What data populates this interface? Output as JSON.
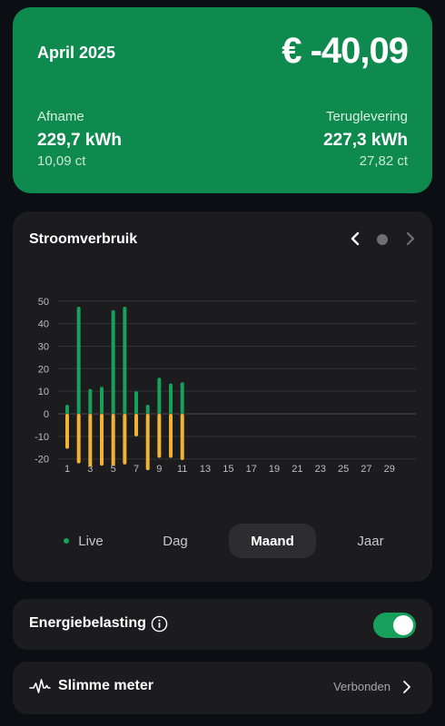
{
  "summary": {
    "month": "April 2025",
    "total": "€ -40,09",
    "afname": {
      "label": "Afname",
      "kwh": "229,7 kWh",
      "price": "10,09 ct"
    },
    "teruglevering": {
      "label": "Teruglevering",
      "kwh": "227,3 kWh",
      "price": "27,82 ct"
    }
  },
  "chart_card": {
    "title": "Stroomverbruik",
    "nav_icons": [
      "chevron-left-icon",
      "page-dot-icon",
      "chevron-right-icon"
    ]
  },
  "tabs": [
    {
      "label": "Live",
      "active": false
    },
    {
      "label": "Dag",
      "active": false
    },
    {
      "label": "Maand",
      "active": true
    },
    {
      "label": "Jaar",
      "active": false
    }
  ],
  "energiebelasting": {
    "label": "Energiebelasting",
    "toggle_on": true
  },
  "slimme_meter": {
    "label": "Slimme meter",
    "status": "Verbonden"
  },
  "colors": {
    "brand_green": "#0e8a4f",
    "consumption": "#17a05c",
    "return": "#f2b234",
    "card": "#1c1c1e",
    "background": "#0b0f14"
  },
  "chart_data": {
    "type": "bar",
    "categories": [
      "1",
      "2",
      "3",
      "4",
      "5",
      "6",
      "7",
      "8",
      "9",
      "10",
      "11",
      "12",
      "13",
      "14",
      "15",
      "16",
      "17",
      "18",
      "19",
      "20",
      "21",
      "22",
      "23",
      "24",
      "25",
      "26",
      "27",
      "28",
      "29",
      "30"
    ],
    "x_tick_labels": [
      "1",
      "3",
      "5",
      "7",
      "9",
      "11",
      "13",
      "15",
      "17",
      "19",
      "21",
      "23",
      "25",
      "27",
      "29"
    ],
    "y_ticks": [
      50,
      40,
      30,
      20,
      10,
      0,
      -10,
      -20
    ],
    "ylim": [
      -25,
      50
    ],
    "series": [
      {
        "values": [
          4,
          47.5,
          11,
          12,
          46,
          47.5,
          10,
          4,
          16,
          13.5,
          14,
          null,
          null,
          null,
          null,
          null,
          null,
          null,
          null,
          null,
          null,
          null,
          null,
          null,
          null,
          null,
          null,
          null,
          null,
          null
        ]
      },
      {
        "values": [
          -15.5,
          -22,
          -23.5,
          -23,
          -23,
          -22.5,
          -10,
          -25,
          -19.5,
          -19.5,
          -20.5,
          null,
          null,
          null,
          null,
          null,
          null,
          null,
          null,
          null,
          null,
          null,
          null,
          null,
          null,
          null,
          null,
          null,
          null,
          null
        ]
      }
    ],
    "grid": true,
    "legend": "none"
  }
}
